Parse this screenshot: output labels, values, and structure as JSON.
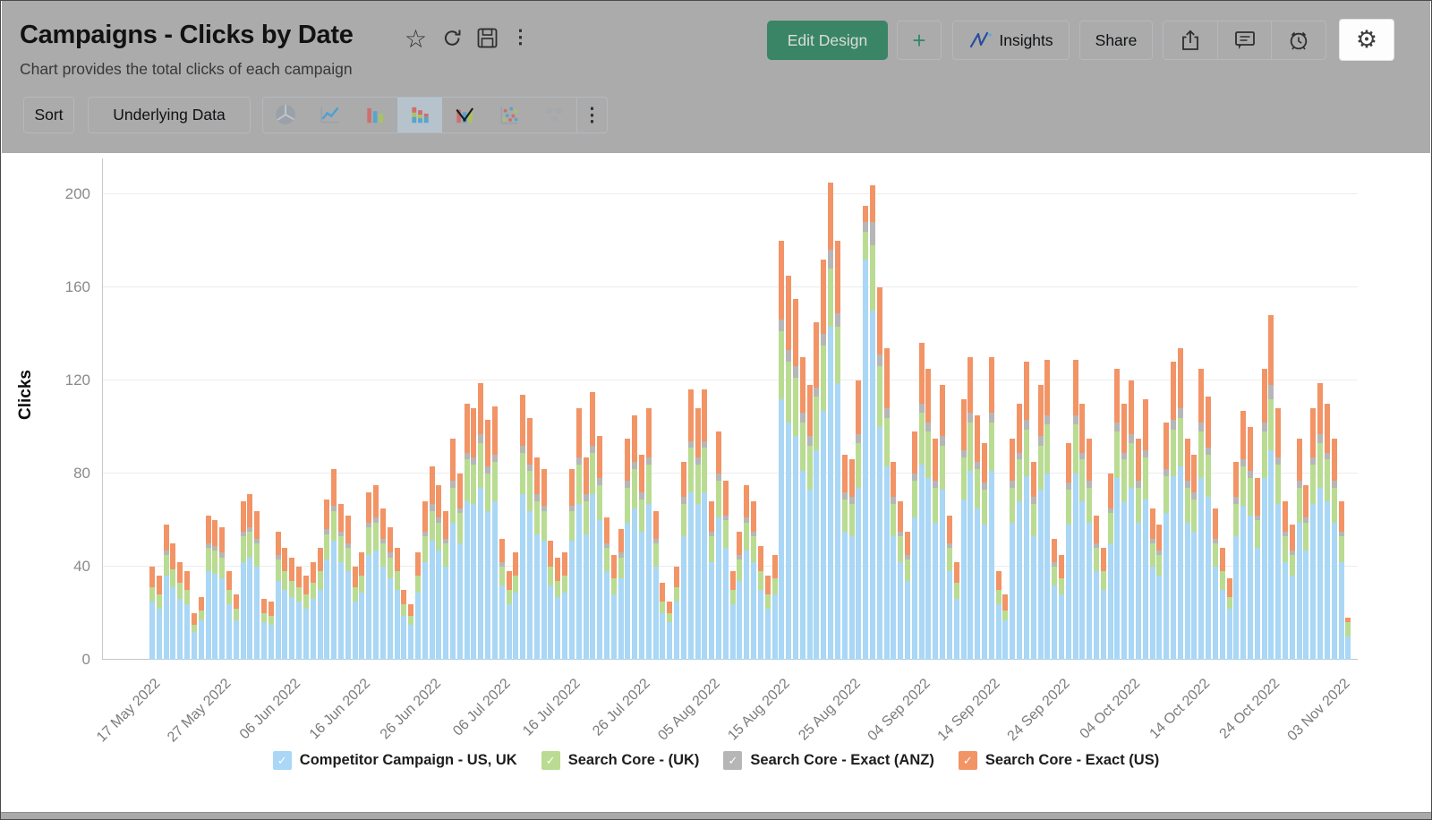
{
  "header": {
    "title": "Campaigns - Clicks by Date",
    "subtitle": "Chart provides the total clicks of each campaign",
    "actions": {
      "edit_design": "Edit Design",
      "add": "+",
      "insights": "Insights",
      "share": "Share"
    }
  },
  "toolbar": {
    "sort": "Sort",
    "underlying_data": "Underlying Data",
    "chart_types": [
      "pie",
      "line",
      "bar",
      "stacked-bar",
      "combination",
      "scatter",
      "map"
    ],
    "active_chart_type": "stacked-bar"
  },
  "colors": {
    "header_bg": "#ababab",
    "accent_green": "#3a8566",
    "grid": "#ececec"
  },
  "chart_data": {
    "type": "bar",
    "stacked": true,
    "title": "",
    "xlabel": "",
    "ylabel": "Clicks",
    "ylim": [
      0,
      200
    ],
    "yticks": [
      0,
      40,
      80,
      120,
      160,
      200
    ],
    "x_unit": "day",
    "x_start": "17 May 2022",
    "xtick_every_n_bars": 10,
    "xtick_labels": [
      "17 May 2022",
      "27 May 2022",
      "06 Jun 2022",
      "16 Jun 2022",
      "26 Jun 2022",
      "06 Jul 2022",
      "16 Jul 2022",
      "26 Jul 2022",
      "05 Aug 2022",
      "15 Aug 2022",
      "25 Aug 2022",
      "04 Sep 2022",
      "14 Sep 2022",
      "24 Sep 2022",
      "04 Oct 2022",
      "14 Oct 2022",
      "24 Oct 2022",
      "03 Nov 2022"
    ],
    "legend_position": "bottom",
    "series": [
      {
        "name": "Competitor Campaign - US, UK",
        "color": "#a9d7f5"
      },
      {
        "name": "Search Core - (UK)",
        "color": "#b9dc92"
      },
      {
        "name": "Search Core - Exact (ANZ)",
        "color": "#b6b6b6"
      },
      {
        "name": "Search Core - Exact (US)",
        "color": "#f29466"
      }
    ],
    "bars": [
      [
        25,
        6,
        0,
        9
      ],
      [
        22,
        6,
        0,
        8
      ],
      [
        36,
        9,
        2,
        11
      ],
      [
        31,
        8,
        0,
        11
      ],
      [
        26,
        7,
        0,
        9
      ],
      [
        24,
        6,
        0,
        8
      ],
      [
        12,
        3,
        0,
        5
      ],
      [
        17,
        4,
        0,
        6
      ],
      [
        38,
        10,
        2,
        12
      ],
      [
        37,
        10,
        2,
        11
      ],
      [
        35,
        9,
        2,
        11
      ],
      [
        24,
        6,
        0,
        8
      ],
      [
        17,
        5,
        0,
        6
      ],
      [
        42,
        11,
        2,
        13
      ],
      [
        44,
        11,
        2,
        14
      ],
      [
        40,
        10,
        2,
        12
      ],
      [
        16,
        4,
        0,
        6
      ],
      [
        15,
        4,
        0,
        6
      ],
      [
        34,
        9,
        2,
        10
      ],
      [
        30,
        8,
        0,
        10
      ],
      [
        27,
        7,
        0,
        10
      ],
      [
        25,
        6,
        0,
        9
      ],
      [
        22,
        6,
        0,
        8
      ],
      [
        26,
        7,
        0,
        9
      ],
      [
        30,
        8,
        0,
        10
      ],
      [
        43,
        11,
        2,
        13
      ],
      [
        51,
        13,
        2,
        16
      ],
      [
        42,
        11,
        2,
        12
      ],
      [
        38,
        10,
        2,
        12
      ],
      [
        25,
        6,
        0,
        9
      ],
      [
        29,
        7,
        0,
        10
      ],
      [
        45,
        12,
        2,
        13
      ],
      [
        47,
        12,
        2,
        14
      ],
      [
        40,
        10,
        2,
        13
      ],
      [
        35,
        9,
        2,
        11
      ],
      [
        30,
        8,
        0,
        10
      ],
      [
        19,
        5,
        0,
        6
      ],
      [
        15,
        4,
        0,
        5
      ],
      [
        29,
        7,
        0,
        10
      ],
      [
        42,
        11,
        2,
        13
      ],
      [
        51,
        13,
        3,
        16
      ],
      [
        47,
        12,
        2,
        14
      ],
      [
        40,
        10,
        2,
        12
      ],
      [
        59,
        15,
        3,
        18
      ],
      [
        50,
        13,
        2,
        15
      ],
      [
        68,
        18,
        3,
        21
      ],
      [
        67,
        17,
        3,
        21
      ],
      [
        74,
        19,
        4,
        22
      ],
      [
        64,
        16,
        3,
        20
      ],
      [
        68,
        17,
        3,
        21
      ],
      [
        32,
        8,
        2,
        10
      ],
      [
        24,
        6,
        0,
        8
      ],
      [
        29,
        7,
        0,
        10
      ],
      [
        71,
        18,
        3,
        22
      ],
      [
        64,
        17,
        3,
        20
      ],
      [
        54,
        14,
        3,
        16
      ],
      [
        51,
        13,
        2,
        16
      ],
      [
        32,
        8,
        0,
        11
      ],
      [
        27,
        7,
        0,
        10
      ],
      [
        29,
        7,
        0,
        10
      ],
      [
        51,
        13,
        2,
        16
      ],
      [
        67,
        17,
        3,
        21
      ],
      [
        54,
        14,
        3,
        16
      ],
      [
        71,
        18,
        3,
        23
      ],
      [
        60,
        15,
        3,
        18
      ],
      [
        38,
        10,
        2,
        11
      ],
      [
        28,
        7,
        0,
        10
      ],
      [
        35,
        9,
        2,
        10
      ],
      [
        59,
        15,
        3,
        18
      ],
      [
        65,
        17,
        3,
        20
      ],
      [
        55,
        14,
        3,
        16
      ],
      [
        67,
        17,
        3,
        21
      ],
      [
        40,
        10,
        2,
        12
      ],
      [
        20,
        5,
        0,
        8
      ],
      [
        16,
        4,
        0,
        5
      ],
      [
        25,
        6,
        0,
        9
      ],
      [
        53,
        14,
        3,
        15
      ],
      [
        72,
        19,
        3,
        22
      ],
      [
        67,
        17,
        3,
        21
      ],
      [
        72,
        19,
        3,
        22
      ],
      [
        42,
        11,
        2,
        13
      ],
      [
        61,
        16,
        3,
        18
      ],
      [
        48,
        12,
        2,
        15
      ],
      [
        24,
        6,
        0,
        8
      ],
      [
        34,
        9,
        2,
        10
      ],
      [
        47,
        12,
        2,
        14
      ],
      [
        42,
        11,
        2,
        13
      ],
      [
        30,
        8,
        0,
        11
      ],
      [
        22,
        6,
        0,
        8
      ],
      [
        28,
        7,
        0,
        10
      ],
      [
        112,
        29,
        5,
        34
      ],
      [
        102,
        26,
        5,
        32
      ],
      [
        96,
        25,
        5,
        29
      ],
      [
        81,
        21,
        4,
        24
      ],
      [
        73,
        19,
        4,
        22
      ],
      [
        90,
        23,
        4,
        28
      ],
      [
        107,
        28,
        5,
        32
      ],
      [
        143,
        25,
        8,
        29
      ],
      [
        119,
        24,
        6,
        31
      ],
      [
        55,
        14,
        3,
        16
      ],
      [
        53,
        14,
        3,
        16
      ],
      [
        74,
        19,
        4,
        23
      ],
      [
        172,
        12,
        4,
        7
      ],
      [
        150,
        28,
        10,
        16
      ],
      [
        100,
        26,
        5,
        29
      ],
      [
        83,
        21,
        4,
        26
      ],
      [
        53,
        14,
        3,
        15
      ],
      [
        42,
        11,
        2,
        13
      ],
      [
        34,
        9,
        2,
        10
      ],
      [
        61,
        16,
        3,
        18
      ],
      [
        84,
        22,
        4,
        26
      ],
      [
        78,
        20,
        4,
        23
      ],
      [
        59,
        15,
        3,
        18
      ],
      [
        73,
        19,
        4,
        22
      ],
      [
        38,
        10,
        2,
        12
      ],
      [
        26,
        7,
        0,
        9
      ],
      [
        69,
        18,
        3,
        22
      ],
      [
        81,
        21,
        4,
        24
      ],
      [
        65,
        17,
        3,
        20
      ],
      [
        58,
        15,
        3,
        17
      ],
      [
        81,
        21,
        4,
        24
      ],
      [
        24,
        6,
        0,
        8
      ],
      [
        17,
        4,
        0,
        7
      ],
      [
        59,
        15,
        3,
        18
      ],
      [
        68,
        18,
        3,
        21
      ],
      [
        79,
        20,
        4,
        25
      ],
      [
        53,
        14,
        3,
        15
      ],
      [
        73,
        19,
        4,
        22
      ],
      [
        80,
        21,
        4,
        24
      ],
      [
        32,
        8,
        2,
        10
      ],
      [
        28,
        7,
        0,
        10
      ],
      [
        58,
        15,
        3,
        17
      ],
      [
        80,
        21,
        4,
        24
      ],
      [
        68,
        18,
        3,
        21
      ],
      [
        59,
        15,
        3,
        18
      ],
      [
        38,
        10,
        2,
        12
      ],
      [
        30,
        8,
        0,
        10
      ],
      [
        50,
        13,
        2,
        15
      ],
      [
        78,
        20,
        4,
        23
      ],
      [
        68,
        18,
        3,
        21
      ],
      [
        74,
        19,
        4,
        23
      ],
      [
        59,
        15,
        3,
        18
      ],
      [
        69,
        18,
        3,
        22
      ],
      [
        40,
        10,
        2,
        13
      ],
      [
        36,
        9,
        2,
        11
      ],
      [
        63,
        16,
        3,
        20
      ],
      [
        79,
        20,
        4,
        25
      ],
      [
        83,
        21,
        4,
        26
      ],
      [
        59,
        15,
        3,
        18
      ],
      [
        55,
        14,
        3,
        16
      ],
      [
        78,
        20,
        4,
        23
      ],
      [
        70,
        18,
        3,
        22
      ],
      [
        40,
        10,
        2,
        13
      ],
      [
        30,
        8,
        0,
        10
      ],
      [
        22,
        5,
        0,
        8
      ],
      [
        53,
        14,
        3,
        15
      ],
      [
        66,
        17,
        3,
        21
      ],
      [
        62,
        16,
        3,
        19
      ],
      [
        48,
        12,
        2,
        16
      ],
      [
        78,
        20,
        4,
        23
      ],
      [
        90,
        22,
        6,
        30
      ],
      [
        67,
        17,
        3,
        21
      ],
      [
        42,
        11,
        2,
        13
      ],
      [
        36,
        9,
        2,
        11
      ],
      [
        59,
        15,
        3,
        18
      ],
      [
        47,
        12,
        2,
        14
      ],
      [
        67,
        17,
        3,
        21
      ],
      [
        74,
        19,
        4,
        22
      ],
      [
        68,
        18,
        3,
        21
      ],
      [
        59,
        15,
        3,
        18
      ],
      [
        42,
        11,
        2,
        13
      ],
      [
        10,
        6,
        0,
        2
      ]
    ]
  }
}
